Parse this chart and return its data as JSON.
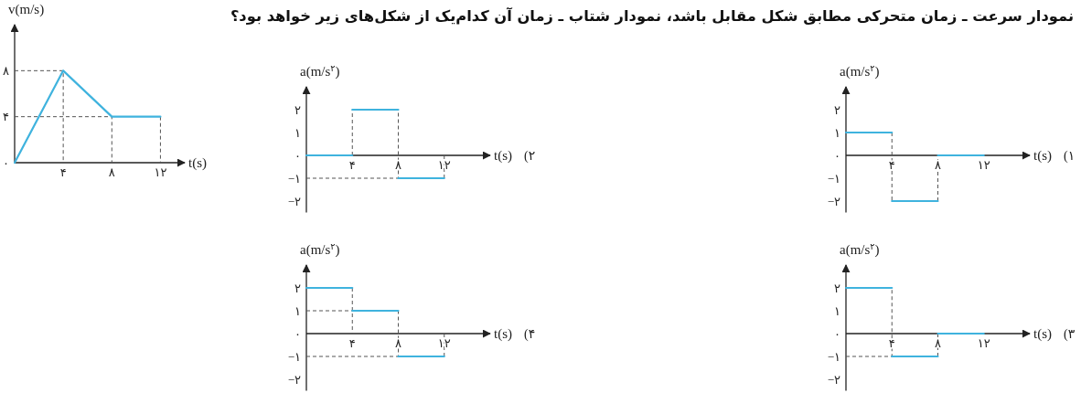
{
  "chart_data": [
    {
      "type": "other",
      "title": "نمودار سرعت ـ زمان متحرکی مطابق شکل مقابل باشد، نمودار شتاب ـ زمان آن کدام‌یک از شکل‌های زیر خواهد بود؟"
    },
    {
      "type": "line",
      "xlabel": "t(s)",
      "ylabel": "v(m/s)",
      "x": [
        0,
        4,
        8,
        12
      ],
      "series": [
        {
          "color": "#3fb3de",
          "values": [
            0,
            8,
            4,
            4
          ]
        },
        {
          "color": "#555555",
          "line_style": "dashed",
          "x": [
            0,
            4,
            4,
            null,
            0,
            8,
            8,
            null,
            12,
            12
          ],
          "values": [
            8,
            8,
            0,
            null,
            4,
            4,
            0,
            null,
            4,
            0
          ]
        }
      ],
      "xlim": [
        0,
        14
      ],
      "ylim": [
        0,
        12
      ],
      "xticks": [
        {
          "value": 4,
          "label": "۴"
        },
        {
          "value": 8,
          "label": "۸"
        },
        {
          "value": 12,
          "label": "۱۲"
        }
      ],
      "yticks": [
        {
          "value": 0,
          "label": "۰"
        },
        {
          "value": 4,
          "label": "۴"
        },
        {
          "value": 8,
          "label": "۸"
        }
      ]
    },
    {
      "type": "line",
      "xlabel": "t(s)",
      "ylabel": "a(m/s$^{۲}$)",
      "annotations": [
        "(۱"
      ],
      "series": [
        {
          "color": "#3fb3de",
          "x": [
            0,
            4,
            null,
            4,
            8,
            null,
            8,
            12
          ],
          "values": [
            1,
            1,
            null,
            -2,
            -2,
            null,
            0,
            0
          ]
        },
        {
          "color": "#555555",
          "line_style": "dashed",
          "x": [
            4,
            4,
            null,
            8,
            8
          ],
          "values": [
            1,
            -2,
            null,
            -2,
            0
          ]
        }
      ],
      "xlim": [
        0,
        16
      ],
      "ylim": [
        -2.5,
        3
      ],
      "xticks": [
        {
          "value": 4,
          "label": "۴"
        },
        {
          "value": 8,
          "label": "۸"
        },
        {
          "value": 12,
          "label": "۱۲"
        }
      ],
      "yticks": [
        {
          "value": -2,
          "label": "−۲"
        },
        {
          "value": -1,
          "label": "−۱"
        },
        {
          "value": 0,
          "label": "۰"
        },
        {
          "value": 1,
          "label": "۱"
        },
        {
          "value": 2,
          "label": "۲"
        }
      ]
    },
    {
      "type": "line",
      "xlabel": "t(s)",
      "ylabel": "a(m/s$^{۲}$)",
      "annotations": [
        "(۲"
      ],
      "series": [
        {
          "color": "#3fb3de",
          "x": [
            0,
            4,
            null,
            4,
            8,
            null,
            8,
            12
          ],
          "values": [
            0,
            0,
            null,
            2,
            2,
            null,
            -1,
            -1
          ]
        },
        {
          "color": "#555555",
          "line_style": "dashed",
          "x": [
            4,
            4,
            null,
            0,
            8,
            8,
            null,
            12,
            12
          ],
          "values": [
            0,
            2,
            null,
            -1,
            -1,
            2,
            null,
            -1,
            0
          ]
        }
      ],
      "xlim": [
        0,
        16
      ],
      "ylim": [
        -2.5,
        3
      ],
      "xticks": [
        {
          "value": 4,
          "label": "۴"
        },
        {
          "value": 8,
          "label": "۸"
        },
        {
          "value": 12,
          "label": "۱۲"
        }
      ],
      "yticks": [
        {
          "value": -2,
          "label": "−۲"
        },
        {
          "value": -1,
          "label": "−۱"
        },
        {
          "value": 0,
          "label": "۰"
        },
        {
          "value": 1,
          "label": "۱"
        },
        {
          "value": 2,
          "label": "۲"
        }
      ]
    },
    {
      "type": "line",
      "xlabel": "t(s)",
      "ylabel": "a(m/s$^{۲}$)",
      "annotations": [
        "(۳"
      ],
      "series": [
        {
          "color": "#3fb3de",
          "x": [
            0,
            4,
            null,
            4,
            8,
            null,
            8,
            12
          ],
          "values": [
            2,
            2,
            null,
            -1,
            -1,
            null,
            0,
            0
          ]
        },
        {
          "color": "#555555",
          "line_style": "dashed",
          "x": [
            0,
            4,
            4,
            null,
            8,
            8
          ],
          "values": [
            -1,
            -1,
            2,
            null,
            -1,
            0
          ]
        }
      ],
      "xlim": [
        0,
        16
      ],
      "ylim": [
        -2.5,
        3
      ],
      "xticks": [
        {
          "value": 4,
          "label": "۴"
        },
        {
          "value": 8,
          "label": "۸"
        },
        {
          "value": 12,
          "label": "۱۲"
        }
      ],
      "yticks": [
        {
          "value": -2,
          "label": "−۲"
        },
        {
          "value": -1,
          "label": "−۱"
        },
        {
          "value": 0,
          "label": "۰"
        },
        {
          "value": 1,
          "label": "۱"
        },
        {
          "value": 2,
          "label": "۲"
        }
      ]
    },
    {
      "type": "line",
      "xlabel": "t(s)",
      "ylabel": "a(m/s$^{۲}$)",
      "annotations": [
        "(۴"
      ],
      "series": [
        {
          "color": "#3fb3de",
          "x": [
            0,
            4,
            null,
            4,
            8,
            null,
            8,
            12
          ],
          "values": [
            2,
            2,
            null,
            1,
            1,
            null,
            -1,
            -1
          ]
        },
        {
          "color": "#555555",
          "line_style": "dashed",
          "x": [
            0,
            4,
            null,
            4,
            4,
            null,
            0,
            8,
            8,
            null,
            12,
            12
          ],
          "values": [
            1,
            1,
            null,
            2,
            0,
            null,
            -1,
            -1,
            1,
            null,
            -1,
            0
          ]
        }
      ],
      "xlim": [
        0,
        16
      ],
      "ylim": [
        -2.5,
        3
      ],
      "xticks": [
        {
          "value": 4,
          "label": "۴"
        },
        {
          "value": 8,
          "label": "۸"
        },
        {
          "value": 12,
          "label": "۱۲"
        }
      ],
      "yticks": [
        {
          "value": -2,
          "label": "−۲"
        },
        {
          "value": -1,
          "label": "−۱"
        },
        {
          "value": 0,
          "label": "۰"
        },
        {
          "value": 1,
          "label": "۱"
        },
        {
          "value": 2,
          "label": "۲"
        }
      ]
    }
  ]
}
